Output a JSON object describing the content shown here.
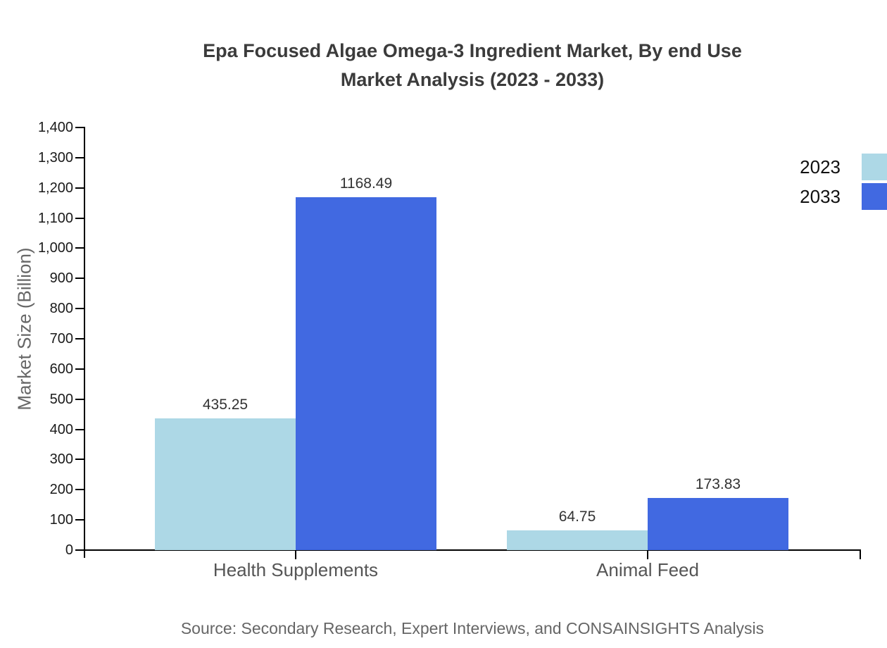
{
  "chart_data": {
    "type": "bar",
    "title": "Epa Focused Algae Omega-3 Ingredient Market, By end Use Market Analysis (2023 - 2033)",
    "title_lines": [
      "Epa Focused Algae Omega-3 Ingredient Market, By end Use",
      "Market Analysis (2023 - 2033)"
    ],
    "xlabel": "",
    "ylabel": "Market Size (Billion)",
    "categories": [
      "Health Supplements",
      "Animal Feed"
    ],
    "series": [
      {
        "name": "2023",
        "color": "#add8e6",
        "values": [
          435.25,
          64.75
        ]
      },
      {
        "name": "2033",
        "color": "#4169e1",
        "values": [
          1168.49,
          173.83
        ]
      }
    ],
    "value_labels": {
      "2023": [
        "435.25",
        "64.75"
      ],
      "2033": [
        "1168.49",
        "173.83"
      ]
    },
    "ylim": [
      0,
      1400
    ],
    "ytick_step": 100,
    "ytick_labels": [
      "0",
      "100",
      "200",
      "300",
      "400",
      "500",
      "600",
      "700",
      "800",
      "900",
      "1,000",
      "1,100",
      "1,200",
      "1,300",
      "1,400"
    ],
    "grid": false,
    "legend_position": "right",
    "source": "Source: Secondary Research, Expert Interviews, and CONSAINSIGHTS Analysis",
    "colors": {
      "axis": "#000000",
      "title_text": "#3b3b3b",
      "tick_label_text": "#1a1a1a",
      "category_label_text": "#555555",
      "value_label_text": "#333333",
      "ylabel_text": "#666666",
      "source_text": "#666666",
      "legend_label_text": "#111111",
      "background": "#ffffff"
    }
  }
}
